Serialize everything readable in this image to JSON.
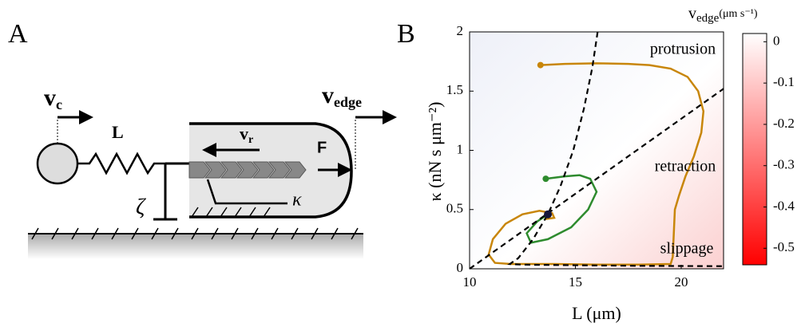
{
  "panel_a": {
    "label": "A",
    "vc_main": "v",
    "vc_sub": "c",
    "spring": "L",
    "vedge_main": "v",
    "vedge_sub": "edge",
    "vr_main": "v",
    "vr_sub": "r",
    "force": "F",
    "kappa": "κ",
    "zeta": "ζ"
  },
  "chart_data": {
    "type": "line",
    "panel_label": "B",
    "x_label": "L (μm)",
    "y_label": "κ (nN s μm⁻²)",
    "xlim": [
      10,
      22
    ],
    "xticks": [
      10,
      15,
      20
    ],
    "ylim": [
      0,
      2
    ],
    "yticks": [
      0,
      0.5,
      1,
      1.5,
      2
    ],
    "annotations": [
      "protrusion",
      "retraction",
      "slippage"
    ],
    "series": [
      {
        "color": "#c8860a",
        "start_marker": true,
        "x": [
          13.35,
          14.5,
          16,
          17.5,
          18.5,
          19.5,
          20.3,
          20.8,
          21.05,
          20.95,
          20.6,
          20.2,
          19.9,
          19.7,
          19.65,
          19.6,
          19.5,
          18,
          16,
          14,
          12,
          11.2,
          10.9,
          11.1,
          11.7,
          12.5,
          13.3,
          13.9,
          14.0,
          13.6,
          13.7
        ],
        "values": [
          1.72,
          1.73,
          1.735,
          1.73,
          1.72,
          1.69,
          1.62,
          1.5,
          1.33,
          1.15,
          0.95,
          0.78,
          0.62,
          0.5,
          0.3,
          0.1,
          0.04,
          0.035,
          0.035,
          0.04,
          0.04,
          0.05,
          0.12,
          0.25,
          0.38,
          0.46,
          0.49,
          0.47,
          0.43,
          0.42,
          0.46
        ]
      },
      {
        "color": "#2e8b2e",
        "start_marker": true,
        "x": [
          13.6,
          14.5,
          15.2,
          15.7,
          16.0,
          15.6,
          14.8,
          13.7,
          12.9,
          12.7,
          13.2,
          13.7
        ],
        "values": [
          0.76,
          0.78,
          0.79,
          0.76,
          0.65,
          0.5,
          0.35,
          0.25,
          0.22,
          0.3,
          0.4,
          0.46
        ]
      },
      {
        "color": "#000000",
        "dashed": true,
        "x": [
          10,
          22
        ],
        "values": [
          0,
          1.52
        ]
      },
      {
        "color": "#000000",
        "dashed": true,
        "x": [
          16.05,
          15.8,
          15.4,
          14.9,
          14.3,
          13.7,
          13.0,
          12.3,
          11.9,
          12.5,
          15,
          18,
          22
        ],
        "values": [
          2,
          1.7,
          1.35,
          1.0,
          0.7,
          0.46,
          0.25,
          0.09,
          0.04,
          0.035,
          0.03,
          0.025,
          0.022
        ]
      },
      {
        "color": "#15153a",
        "point": true,
        "x": [
          13.7
        ],
        "values": [
          0.46
        ]
      }
    ],
    "colorbar": {
      "title_main": "v",
      "title_sub": "edge",
      "title_units": "(μm s⁻¹)",
      "lim": [
        -0.54,
        0.02
      ],
      "ticks": [
        0,
        -0.1,
        -0.2,
        -0.3,
        -0.4,
        -0.5
      ],
      "colors": [
        "#ffffff",
        "#ff0000"
      ]
    }
  }
}
